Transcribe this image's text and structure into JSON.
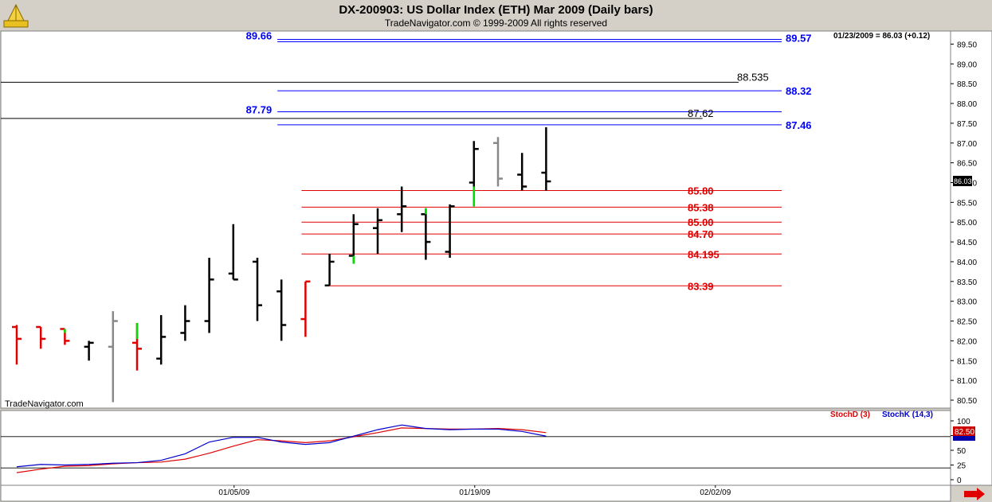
{
  "header": {
    "title": "DX-200903:  US Dollar Index (ETH) Mar 2009  (Daily bars)",
    "subtitle": "TradeNavigator.com © 1999-2009 All rights reserved"
  },
  "status": {
    "last_quote": "01/23/2009 = 86.03 (+0.12)",
    "watermark": "TradeNavigator.com",
    "current_price_tag": "86.03",
    "stoch_tag": "82.50"
  },
  "colors": {
    "blue_level": "#0000ff",
    "black_level": "#000000",
    "red_level": "#e00000",
    "up_highlight": "#00dd00",
    "gray_bar": "#888888",
    "stochD": "#e00000",
    "stochK": "#0000cc",
    "background": "#ffffff",
    "frame": "#d4d0c8"
  },
  "chart_data": [
    {
      "type": "line",
      "subtype": "ohlc-bars",
      "title": "DX-200903:  US Dollar Index (ETH) Mar 2009  (Daily bars)",
      "ylim": [
        80.2,
        89.9
      ],
      "yticks": [
        "80.50",
        "81.00",
        "81.50",
        "82.00",
        "82.50",
        "83.00",
        "83.50",
        "84.00",
        "84.50",
        "85.00",
        "85.50",
        "86.00",
        "86.50",
        "87.00",
        "87.50",
        "88.00",
        "88.50",
        "89.00",
        "89.50"
      ],
      "xticks": [
        {
          "index": 9,
          "label": "01/05/09"
        },
        {
          "index": 19,
          "label": "01/19/09"
        },
        {
          "index": 29,
          "label": "02/02/09"
        }
      ],
      "bars": [
        {
          "o": 82.35,
          "h": 82.4,
          "l": 81.4,
          "c": 82.05,
          "color": "red"
        },
        {
          "o": 82.35,
          "h": 82.35,
          "l": 81.8,
          "c": 82.05,
          "color": "red"
        },
        {
          "o": 82.3,
          "h": 82.3,
          "l": 81.9,
          "c": 82.0,
          "color": "red"
        },
        {
          "o": 81.85,
          "h": 82.0,
          "l": 81.5,
          "c": 81.95,
          "color": "black"
        },
        {
          "o": 81.85,
          "h": 82.75,
          "l": 80.45,
          "c": 82.5,
          "color": "gray"
        },
        {
          "o": 81.95,
          "h": 82.45,
          "l": 81.25,
          "c": 81.8,
          "color": "red"
        },
        {
          "o": 81.55,
          "h": 82.65,
          "l": 81.4,
          "c": 82.1,
          "color": "black"
        },
        {
          "o": 82.2,
          "h": 82.9,
          "l": 82.0,
          "c": 82.5,
          "color": "black"
        },
        {
          "o": 82.5,
          "h": 84.1,
          "l": 82.2,
          "c": 83.55,
          "color": "black"
        },
        {
          "o": 83.7,
          "h": 84.95,
          "l": 83.55,
          "c": 83.55,
          "color": "black"
        },
        {
          "o": 84.0,
          "h": 84.1,
          "l": 82.5,
          "c": 82.9,
          "color": "black"
        },
        {
          "o": 83.25,
          "h": 83.55,
          "l": 82.0,
          "c": 82.4,
          "color": "black"
        },
        {
          "o": 82.55,
          "h": 83.5,
          "l": 82.1,
          "c": 83.5,
          "color": "red"
        },
        {
          "o": 83.4,
          "h": 84.2,
          "l": 83.4,
          "c": 84.0,
          "color": "black"
        },
        {
          "o": 84.15,
          "h": 85.2,
          "l": 83.95,
          "c": 84.95,
          "color": "black"
        },
        {
          "o": 84.85,
          "h": 85.35,
          "l": 84.2,
          "c": 85.05,
          "color": "black"
        },
        {
          "o": 85.2,
          "h": 85.9,
          "l": 84.75,
          "c": 85.4,
          "color": "black"
        },
        {
          "o": 85.2,
          "h": 85.35,
          "l": 84.05,
          "c": 84.5,
          "color": "black"
        },
        {
          "o": 84.25,
          "h": 85.45,
          "l": 84.1,
          "c": 85.4,
          "color": "black"
        },
        {
          "o": 86.0,
          "h": 87.05,
          "l": 85.4,
          "c": 86.85,
          "color": "black"
        },
        {
          "o": 87.0,
          "h": 87.15,
          "l": 85.9,
          "c": 86.1,
          "color": "gray"
        },
        {
          "o": 86.2,
          "h": 86.75,
          "l": 85.8,
          "c": 85.9,
          "color": "black"
        },
        {
          "o": 86.25,
          "h": 87.4,
          "l": 85.8,
          "c": 86.03,
          "color": "black"
        }
      ],
      "green_wicks": [
        {
          "index": 2,
          "from": 82.3,
          "to": 82.2
        },
        {
          "index": 5,
          "from": 82.45,
          "to": 82.05
        },
        {
          "index": 14,
          "from": 84.15,
          "to": 83.95
        },
        {
          "index": 17,
          "from": 85.35,
          "to": 85.2
        },
        {
          "index": 19,
          "from": 85.9,
          "to": 85.4
        }
      ],
      "levels": [
        {
          "label_left": "89.66",
          "label_right": "89.57",
          "value": 89.66,
          "value2": 89.57,
          "color": "blue",
          "start_index": 11
        },
        {
          "label_left": "",
          "label_right": "88.535",
          "value": 88.535,
          "color": "black",
          "start_index": -1,
          "end_index": 30
        },
        {
          "label_left": "",
          "label_right": "88.32",
          "value": 88.32,
          "color": "blue",
          "start_index": 11
        },
        {
          "label_left": "87.79",
          "label_right": "",
          "value": 87.79,
          "color": "blue",
          "start_index": 11
        },
        {
          "label_left": "",
          "label_right": "87.62",
          "value": 87.62,
          "color": "black",
          "start_index": -1,
          "end_index": 28.5
        },
        {
          "label_left": "",
          "label_right": "87.46",
          "value": 87.46,
          "color": "blue",
          "start_index": 11
        },
        {
          "label_left": "",
          "label_right": "85.80",
          "value": 85.8,
          "color": "red",
          "start_index": 12
        },
        {
          "label_left": "",
          "label_right": "85.38",
          "value": 85.38,
          "color": "red",
          "start_index": 12
        },
        {
          "label_left": "",
          "label_right": "85.00",
          "value": 85.0,
          "color": "red",
          "start_index": 12
        },
        {
          "label_left": "",
          "label_right": "84.70",
          "value": 84.7,
          "color": "red",
          "start_index": 12
        },
        {
          "label_left": "",
          "label_right": "84.195",
          "value": 84.195,
          "color": "red",
          "start_index": 12
        },
        {
          "label_left": "",
          "label_right": "83.39",
          "value": 83.39,
          "color": "red",
          "start_index": 13
        }
      ]
    },
    {
      "type": "line",
      "title": "",
      "ylim": [
        0,
        100
      ],
      "yticks": [
        "0",
        "25",
        "50",
        "75",
        "100"
      ],
      "hlines": [
        80,
        20
      ],
      "series": [
        {
          "name": "StochD (3)",
          "color": "red",
          "values": [
            12,
            18,
            23,
            24,
            27,
            29,
            30,
            35,
            45,
            57,
            68,
            66,
            63,
            66,
            73,
            80,
            88,
            87,
            86,
            86,
            87,
            85,
            80
          ]
        },
        {
          "name": "StochK (14,3)",
          "color": "blue",
          "values": [
            22,
            26,
            25,
            26,
            28,
            29,
            33,
            44,
            64,
            72,
            72,
            64,
            60,
            63,
            74,
            85,
            93,
            87,
            85,
            86,
            86,
            82,
            74
          ]
        }
      ]
    }
  ]
}
